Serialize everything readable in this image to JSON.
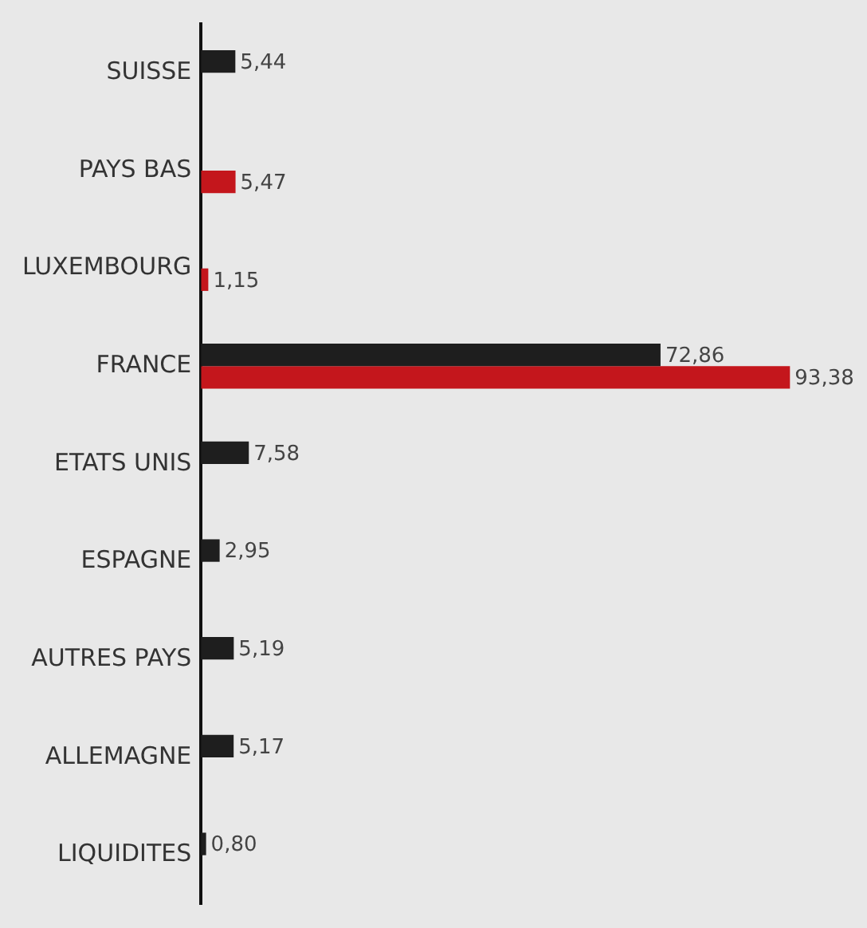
{
  "chart_data": {
    "type": "bar",
    "orientation": "horizontal",
    "categories": [
      "SUISSE",
      "PAYS BAS",
      "LUXEMBOURG",
      "FRANCE",
      "ETATS UNIS",
      "ESPAGNE",
      "AUTRES PAYS",
      "ALLEMAGNE",
      "LIQUIDITES"
    ],
    "series": [
      {
        "color": "#1e1e1e",
        "values": [
          5.44,
          null,
          null,
          72.86,
          7.58,
          2.95,
          5.19,
          5.17,
          0.8
        ],
        "value_labels": [
          "5,44",
          null,
          null,
          "72,86",
          "7,58",
          "2,95",
          "5,19",
          "5,17",
          "0,80"
        ]
      },
      {
        "color": "#c4161c",
        "values": [
          null,
          5.47,
          1.15,
          93.38,
          null,
          null,
          null,
          null,
          null
        ],
        "value_labels": [
          null,
          "5,47",
          "1,15",
          "93,38",
          null,
          null,
          null,
          null,
          null
        ]
      }
    ],
    "legend": false,
    "tick_labels": "y"
  }
}
